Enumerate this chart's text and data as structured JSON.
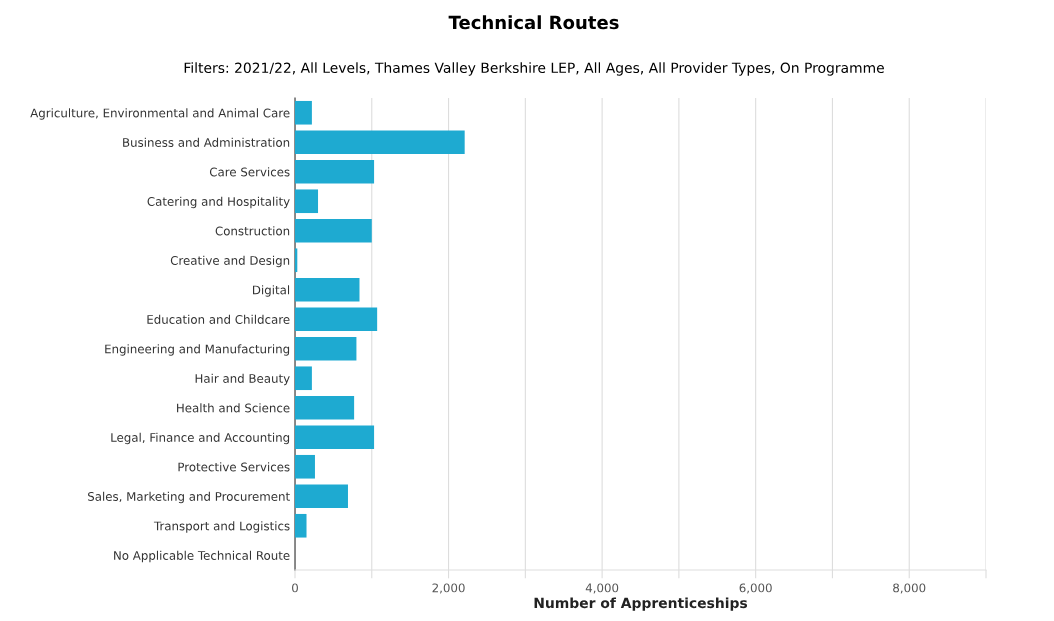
{
  "chart_data": {
    "type": "bar",
    "orientation": "horizontal",
    "title": "Technical Routes",
    "subtitle": "Filters: 2021/22, All Levels, Thames Valley Berkshire LEP, All Ages, All Provider Types, On Programme",
    "xlabel": "Number of Apprenticeships",
    "categories": [
      "Agriculture, Environmental and Animal Care",
      "Business and Administration",
      "Care Services",
      "Catering and Hospitality",
      "Construction",
      "Creative and Design",
      "Digital",
      "Education and Childcare",
      "Engineering and Manufacturing",
      "Hair and Beauty",
      "Health and Science",
      "Legal, Finance and Accounting",
      "Protective Services",
      "Sales, Marketing and Procurement",
      "Transport and Logistics",
      "No Applicable Technical Route"
    ],
    "values": [
      220,
      2210,
      1030,
      300,
      1000,
      30,
      840,
      1070,
      800,
      220,
      770,
      1030,
      260,
      690,
      150,
      0
    ],
    "color": "#1eaad1",
    "xlim": [
      0,
      9000
    ],
    "xticks": [
      0,
      {
        "value": 1000,
        "label": null
      },
      {
        "value": 2000,
        "label": "2,000"
      },
      {
        "value": 3000,
        "label": null
      },
      {
        "value": 4000,
        "label": "4,000"
      },
      {
        "value": 5000,
        "label": null
      },
      {
        "value": 6000,
        "label": "6,000"
      },
      {
        "value": 7000,
        "label": null
      },
      {
        "value": 8000,
        "label": "8,000"
      },
      {
        "value": 9000,
        "label": null
      }
    ],
    "grid": "x"
  }
}
